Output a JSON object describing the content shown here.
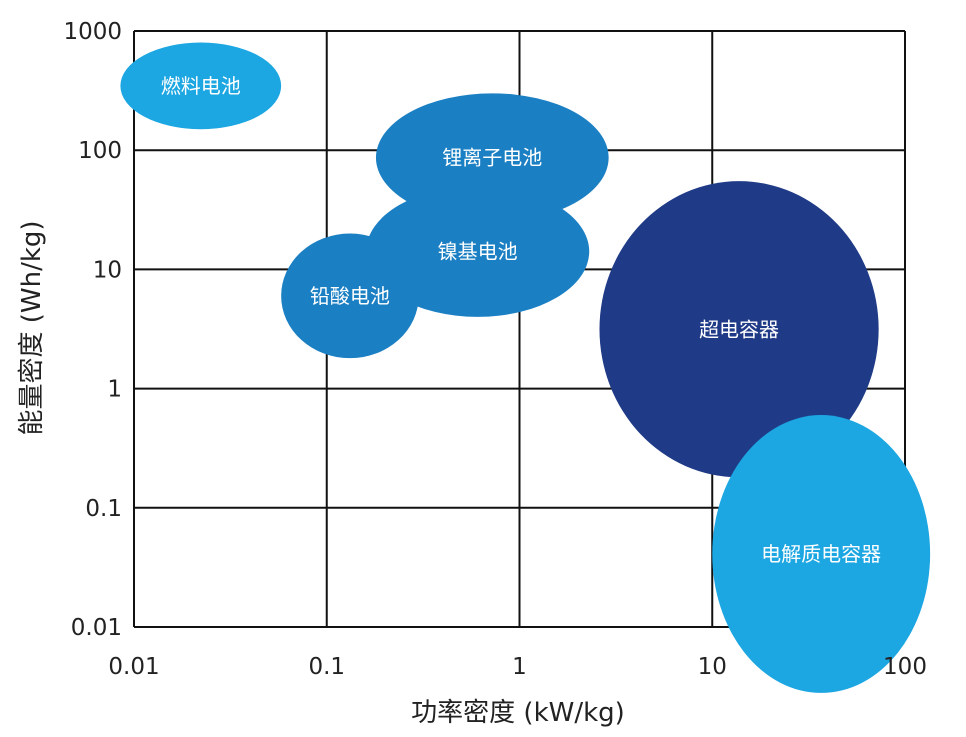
{
  "chart_data": {
    "type": "scatter",
    "title": "",
    "xlabel": "功率密度 (kW/kg)",
    "ylabel": "能量密度 (Wh/kg)",
    "xscale": "log",
    "yscale": "log",
    "xlim": [
      0.01,
      100
    ],
    "ylim": [
      0.01,
      1000
    ],
    "grid": true,
    "x_ticks": [
      0.01,
      0.1,
      1,
      10,
      100
    ],
    "x_tick_labels": [
      "0.01",
      "0.1",
      "1",
      "10",
      "100"
    ],
    "y_ticks": [
      0.01,
      0.1,
      1,
      10,
      100,
      1000
    ],
    "y_tick_labels": [
      "0.01",
      "0.1",
      "1",
      "10",
      "100",
      "1000"
    ],
    "regions": [
      {
        "name": "燃料电池",
        "power_range": [
          0.0085,
          0.058
        ],
        "energy_range": [
          150,
          800
        ],
        "color": "#1ca6e2"
      },
      {
        "name": "锂离子电池",
        "power_range": [
          0.18,
          2.9
        ],
        "energy_range": [
          25,
          300
        ],
        "color": "#1b7fc3"
      },
      {
        "name": "镍基电池",
        "power_range": [
          0.16,
          2.3
        ],
        "energy_range": [
          4,
          50
        ],
        "color": "#1b7fc3"
      },
      {
        "name": "铅酸电池",
        "power_range": [
          0.058,
          0.3
        ],
        "energy_range": [
          1.8,
          20
        ],
        "color": "#1b7fc3"
      },
      {
        "name": "超电容器",
        "power_range": [
          2.6,
          73
        ],
        "energy_range": [
          0.18,
          55
        ],
        "color": "#1f3a86"
      },
      {
        "name": "电解质电容器",
        "power_range": [
          10,
          135
        ],
        "energy_range": [
          0.0028,
          0.6
        ],
        "color": "#1ca6e2"
      }
    ]
  }
}
